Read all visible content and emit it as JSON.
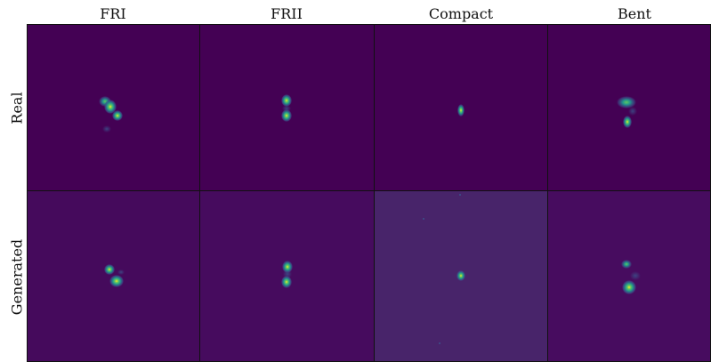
{
  "columns": [
    "FRI",
    "FRII",
    "Compact",
    "Bent"
  ],
  "rows": [
    "Real",
    "Generated"
  ],
  "colors": {
    "background_real": "#440154",
    "background_generated": [
      "#450a5c",
      "#460b5e",
      "#48246a",
      "#470c5f"
    ],
    "border": "#111111",
    "source_low": "#3b528b",
    "source_mid": "#21918c",
    "source_high": "#5ec962",
    "source_peak": "#fde725"
  }
}
